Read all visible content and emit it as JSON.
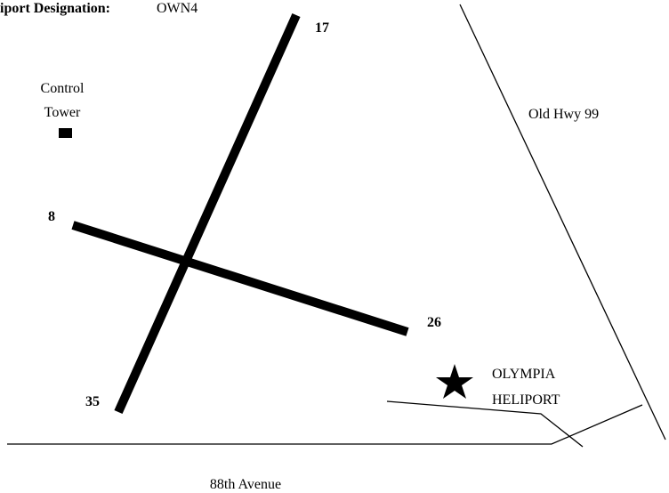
{
  "header": {
    "label": "iport Designation:",
    "value": "OWN4"
  },
  "runways": [
    {
      "end_a": "17",
      "end_b": "35"
    },
    {
      "end_a": "8",
      "end_b": "26"
    }
  ],
  "landmarks": {
    "tower_line1": "Control",
    "tower_line2": "Tower",
    "highway": "Old Hwy 99",
    "heliport_line1": "OLYMPIA",
    "heliport_line2": "HELIPORT",
    "avenue": "88th Avenue"
  }
}
